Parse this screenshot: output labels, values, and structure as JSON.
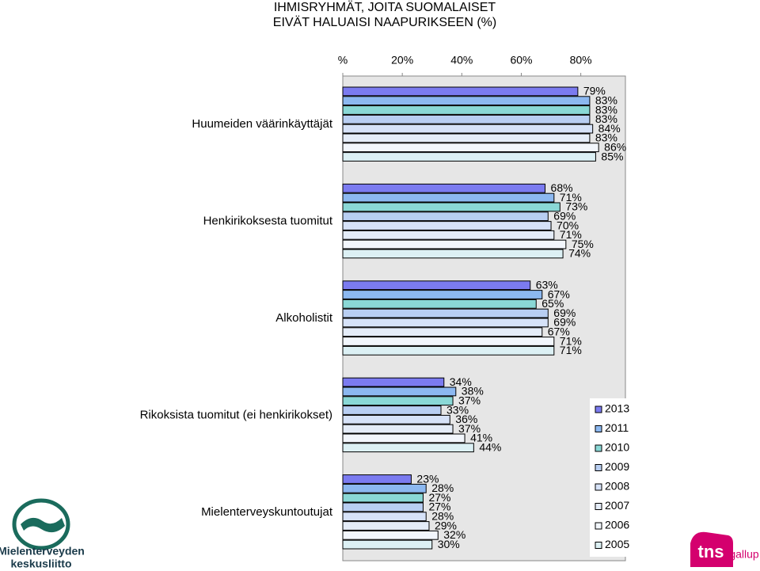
{
  "chart_data": {
    "type": "hbar",
    "title": [
      "IHMISRYHMÄT, JOITA SUOMALAISET",
      "EIVÄT HALUAISI NAAPURIKSEEN (%)"
    ],
    "categories": [
      "Huumeiden väärinkäyttäjät",
      "Henkirikoksesta tuomitut",
      "Alkoholistit",
      "Rikoksista tuomitut (ei henkirikokset)",
      "Mielenterveyskuntoutujat"
    ],
    "series": [
      {
        "name": "2013",
        "color": "#7b7bf0",
        "values": [
          79,
          68,
          63,
          34,
          23
        ],
        "value_labels": [
          "79%",
          "68%",
          "63%",
          "34%",
          "23%"
        ]
      },
      {
        "name": "2011",
        "color": "#8cb8f0",
        "values": [
          83,
          71,
          67,
          38,
          28
        ],
        "value_labels": [
          "83%",
          "71%",
          "67%",
          "38%",
          "28%"
        ]
      },
      {
        "name": "2010",
        "color": "#8ad8d6",
        "values": [
          83,
          73,
          65,
          37,
          27
        ],
        "value_labels": [
          "83%",
          "73%",
          "65%",
          "37%",
          "27%"
        ]
      },
      {
        "name": "2009",
        "color": "#b8cef2",
        "values": [
          83,
          69,
          69,
          33,
          27
        ],
        "value_labels": [
          "83%",
          "69%",
          "69%",
          "33%",
          "27%"
        ]
      },
      {
        "name": "2008",
        "color": "#d6e2f8",
        "values": [
          84,
          70,
          69,
          36,
          28
        ],
        "value_labels": [
          "84%",
          "70%",
          "69%",
          "36%",
          "28%"
        ]
      },
      {
        "name": "2007",
        "color": "#e4ecf8",
        "values": [
          83,
          71,
          67,
          37,
          29
        ],
        "value_labels": [
          "83%",
          "71%",
          "67%",
          "37%",
          "29%"
        ]
      },
      {
        "name": "2006",
        "color": "#f2f6fc",
        "values": [
          86,
          75,
          71,
          41,
          32
        ],
        "value_labels": [
          "86%",
          "75%",
          "71%",
          "41%",
          "32%"
        ]
      },
      {
        "name": "2005",
        "color": "#dcf0f4",
        "values": [
          85,
          74,
          71,
          44,
          30
        ],
        "value_labels": [
          "85%",
          "74%",
          "71%",
          "44%",
          "30%"
        ]
      }
    ],
    "xlim": [
      0,
      95
    ],
    "xticks": [
      {
        "value": 0,
        "label": "%"
      },
      {
        "value": 20,
        "label": "20%"
      },
      {
        "value": 40,
        "label": "40%"
      },
      {
        "value": 60,
        "label": "60%"
      },
      {
        "value": 80,
        "label": "80%"
      }
    ],
    "grid": false,
    "legend": "right"
  },
  "logos": {
    "left": [
      "Mielenterveyden",
      "keskusliitto"
    ],
    "right": [
      "tns",
      "gallup"
    ]
  }
}
